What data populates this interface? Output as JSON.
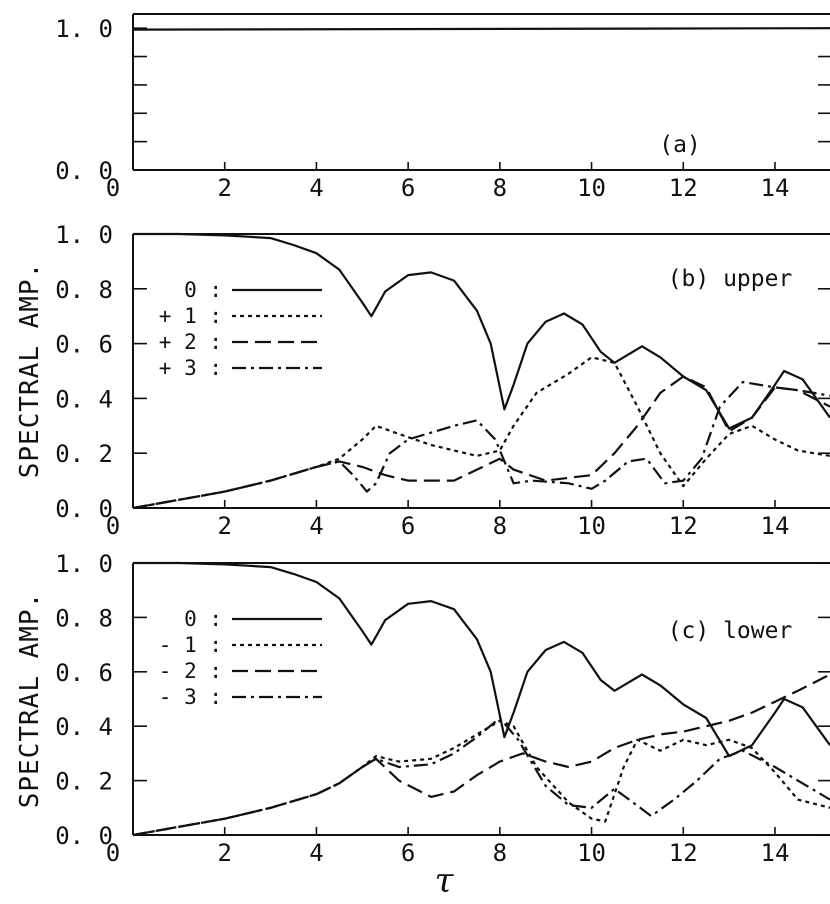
{
  "figure": {
    "x_axis_symbol": "τ",
    "shared_ylabel": "SPECTRAL AMP."
  },
  "chart_data": [
    {
      "type": "line",
      "panel_label": "(a)",
      "ylabel": "",
      "xlim": [
        0,
        15.2
      ],
      "ylim": [
        0,
        1.1
      ],
      "x_ticks": [
        "0",
        "2",
        "4",
        "6",
        "8",
        "10",
        "12",
        "14"
      ],
      "y_ticks": [
        "0. 0",
        "1. 0"
      ],
      "legend": [],
      "series": [
        {
          "style": "solid",
          "x": [
            0,
            15.2
          ],
          "y": [
            0.99,
            1.0
          ]
        }
      ]
    },
    {
      "type": "line",
      "panel_label": "(b) upper",
      "ylabel": "SPECTRAL AMP.",
      "xlim": [
        0,
        15.2
      ],
      "ylim": [
        0,
        1.0
      ],
      "x_ticks": [
        "0",
        "2",
        "4",
        "6",
        "8",
        "10",
        "12",
        "14"
      ],
      "y_ticks": [
        "0. 0",
        "0. 2",
        "0. 4",
        "0. 6",
        "0. 8",
        "1. 0"
      ],
      "legend": [
        {
          "label": "0 :",
          "style": "solid"
        },
        {
          "label": "+ 1 :",
          "style": "dotted"
        },
        {
          "label": "+ 2 :",
          "style": "dashed"
        },
        {
          "label": "+ 3 :",
          "style": "dashdot"
        }
      ],
      "series": [
        {
          "name": "0",
          "style": "solid",
          "x": [
            0,
            1,
            2,
            2.5,
            3,
            3.5,
            4,
            4.5,
            5,
            5.2,
            5.5,
            6,
            6.5,
            7,
            7.5,
            7.8,
            8.1,
            8.3,
            8.6,
            9,
            9.4,
            9.8,
            10.2,
            10.5,
            10.8,
            11.1,
            11.5,
            12,
            12.5,
            13,
            13.5,
            14,
            14.2,
            14.6,
            15.2
          ],
          "y": [
            1.0,
            1.0,
            0.995,
            0.99,
            0.985,
            0.96,
            0.93,
            0.87,
            0.75,
            0.7,
            0.79,
            0.85,
            0.86,
            0.83,
            0.72,
            0.6,
            0.36,
            0.45,
            0.6,
            0.68,
            0.71,
            0.67,
            0.57,
            0.53,
            0.56,
            0.59,
            0.55,
            0.48,
            0.43,
            0.29,
            0.33,
            0.45,
            0.5,
            0.47,
            0.33
          ]
        },
        {
          "name": "+1",
          "style": "dotted",
          "x": [
            0,
            1,
            2,
            3,
            4,
            4.5,
            5,
            5.3,
            5.8,
            6.5,
            7.5,
            8.0,
            8.3,
            8.8,
            9.5,
            10.0,
            10.5,
            11,
            11.5,
            12.0,
            12.5,
            13,
            13.5,
            14,
            14.5,
            15.2
          ],
          "y": [
            0,
            0.03,
            0.06,
            0.1,
            0.15,
            0.18,
            0.25,
            0.3,
            0.27,
            0.23,
            0.19,
            0.21,
            0.3,
            0.42,
            0.49,
            0.55,
            0.53,
            0.37,
            0.2,
            0.08,
            0.18,
            0.27,
            0.3,
            0.25,
            0.21,
            0.19
          ]
        },
        {
          "name": "+2",
          "style": "dashed",
          "x": [
            0,
            1,
            2,
            3,
            4,
            4.5,
            5,
            5.5,
            6,
            7,
            8,
            8.3,
            9,
            10,
            10.5,
            11,
            11.5,
            12,
            12.5,
            13,
            13.5,
            14,
            14.5,
            15.2
          ],
          "y": [
            0,
            0.03,
            0.06,
            0.1,
            0.15,
            0.17,
            0.15,
            0.12,
            0.1,
            0.1,
            0.18,
            0.14,
            0.1,
            0.12,
            0.2,
            0.3,
            0.42,
            0.48,
            0.44,
            0.28,
            0.33,
            0.44,
            0.43,
            0.37
          ]
        },
        {
          "name": "+3",
          "style": "dashdot",
          "x": [
            0,
            1,
            2,
            3,
            4,
            4.5,
            4.8,
            5.1,
            5.3,
            5.6,
            6,
            7,
            7.5,
            7.9,
            8.3,
            8.7,
            9.5,
            10.0,
            10.3,
            10.8,
            11.2,
            11.6,
            12.0,
            12.4,
            12.8,
            13.3,
            14,
            14.5,
            15.2
          ],
          "y": [
            0,
            0.03,
            0.06,
            0.1,
            0.15,
            0.17,
            0.12,
            0.06,
            0.09,
            0.2,
            0.25,
            0.3,
            0.32,
            0.25,
            0.09,
            0.1,
            0.09,
            0.07,
            0.1,
            0.17,
            0.18,
            0.09,
            0.1,
            0.18,
            0.37,
            0.46,
            0.44,
            0.43,
            0.41
          ]
        }
      ]
    },
    {
      "type": "line",
      "panel_label": "(c) lower",
      "ylabel": "SPECTRAL AMP.",
      "xlim": [
        0,
        15.2
      ],
      "ylim": [
        0,
        1.0
      ],
      "x_ticks": [
        "0",
        "2",
        "4",
        "6",
        "8",
        "10",
        "12",
        "14"
      ],
      "y_ticks": [
        "0. 0",
        "0. 2",
        "0. 4",
        "0. 6",
        "0. 8",
        "1. 0"
      ],
      "legend": [
        {
          "label": "0 :",
          "style": "solid"
        },
        {
          "label": "- 1 :",
          "style": "dotted"
        },
        {
          "label": "- 2 :",
          "style": "dashed"
        },
        {
          "label": "- 3 :",
          "style": "dashdot"
        }
      ],
      "series": [
        {
          "name": "0",
          "style": "solid",
          "x": [
            0,
            1,
            2,
            2.5,
            3,
            3.5,
            4,
            4.5,
            5,
            5.2,
            5.5,
            6,
            6.5,
            7,
            7.5,
            7.8,
            8.1,
            8.3,
            8.6,
            9,
            9.4,
            9.8,
            10.2,
            10.5,
            10.8,
            11.1,
            11.5,
            12,
            12.5,
            13,
            13.5,
            14,
            14.2,
            14.6,
            15.2
          ],
          "y": [
            1.0,
            1.0,
            0.995,
            0.99,
            0.985,
            0.96,
            0.93,
            0.87,
            0.75,
            0.7,
            0.79,
            0.85,
            0.86,
            0.83,
            0.72,
            0.6,
            0.36,
            0.45,
            0.6,
            0.68,
            0.71,
            0.67,
            0.57,
            0.53,
            0.56,
            0.59,
            0.55,
            0.48,
            0.43,
            0.29,
            0.33,
            0.45,
            0.5,
            0.47,
            0.33
          ]
        },
        {
          "name": "-1",
          "style": "dotted",
          "x": [
            0,
            1,
            2,
            3,
            4,
            4.5,
            5,
            5.3,
            5.8,
            6.5,
            7,
            7.5,
            8.0,
            8.3,
            8.8,
            9.5,
            10.0,
            10.3,
            10.7,
            11.0,
            11.5,
            12,
            12.5,
            13,
            13.5,
            14,
            14.5,
            15.2
          ],
          "y": [
            0,
            0.03,
            0.06,
            0.1,
            0.15,
            0.19,
            0.25,
            0.29,
            0.27,
            0.28,
            0.32,
            0.37,
            0.42,
            0.4,
            0.25,
            0.12,
            0.06,
            0.05,
            0.25,
            0.35,
            0.31,
            0.35,
            0.33,
            0.35,
            0.32,
            0.23,
            0.13,
            0.1
          ]
        },
        {
          "name": "-2",
          "style": "dashed",
          "x": [
            0,
            1,
            2,
            3,
            4,
            4.5,
            5,
            5.3,
            5.8,
            6.5,
            7,
            7.5,
            8.0,
            8.5,
            9.0,
            9.5,
            10.0,
            10.5,
            11.0,
            11.5,
            12,
            12.5,
            13,
            13.5,
            14,
            14.5,
            15.2
          ],
          "y": [
            0,
            0.03,
            0.06,
            0.1,
            0.15,
            0.19,
            0.25,
            0.28,
            0.2,
            0.14,
            0.16,
            0.22,
            0.27,
            0.3,
            0.27,
            0.25,
            0.27,
            0.32,
            0.35,
            0.37,
            0.38,
            0.4,
            0.42,
            0.45,
            0.49,
            0.53,
            0.59
          ]
        },
        {
          "name": "-3",
          "style": "dashdot",
          "x": [
            0,
            1,
            2,
            3,
            4,
            4.5,
            5,
            5.3,
            5.8,
            6.5,
            7,
            7.5,
            8.0,
            8.4,
            9.0,
            9.5,
            10.0,
            10.5,
            10.9,
            11.3,
            11.8,
            12.3,
            12.8,
            13.3,
            14,
            14.5,
            15.2
          ],
          "y": [
            0,
            0.03,
            0.06,
            0.1,
            0.15,
            0.19,
            0.25,
            0.28,
            0.25,
            0.26,
            0.3,
            0.36,
            0.43,
            0.35,
            0.18,
            0.11,
            0.1,
            0.17,
            0.12,
            0.07,
            0.13,
            0.2,
            0.28,
            0.31,
            0.25,
            0.2,
            0.13
          ]
        }
      ]
    }
  ]
}
